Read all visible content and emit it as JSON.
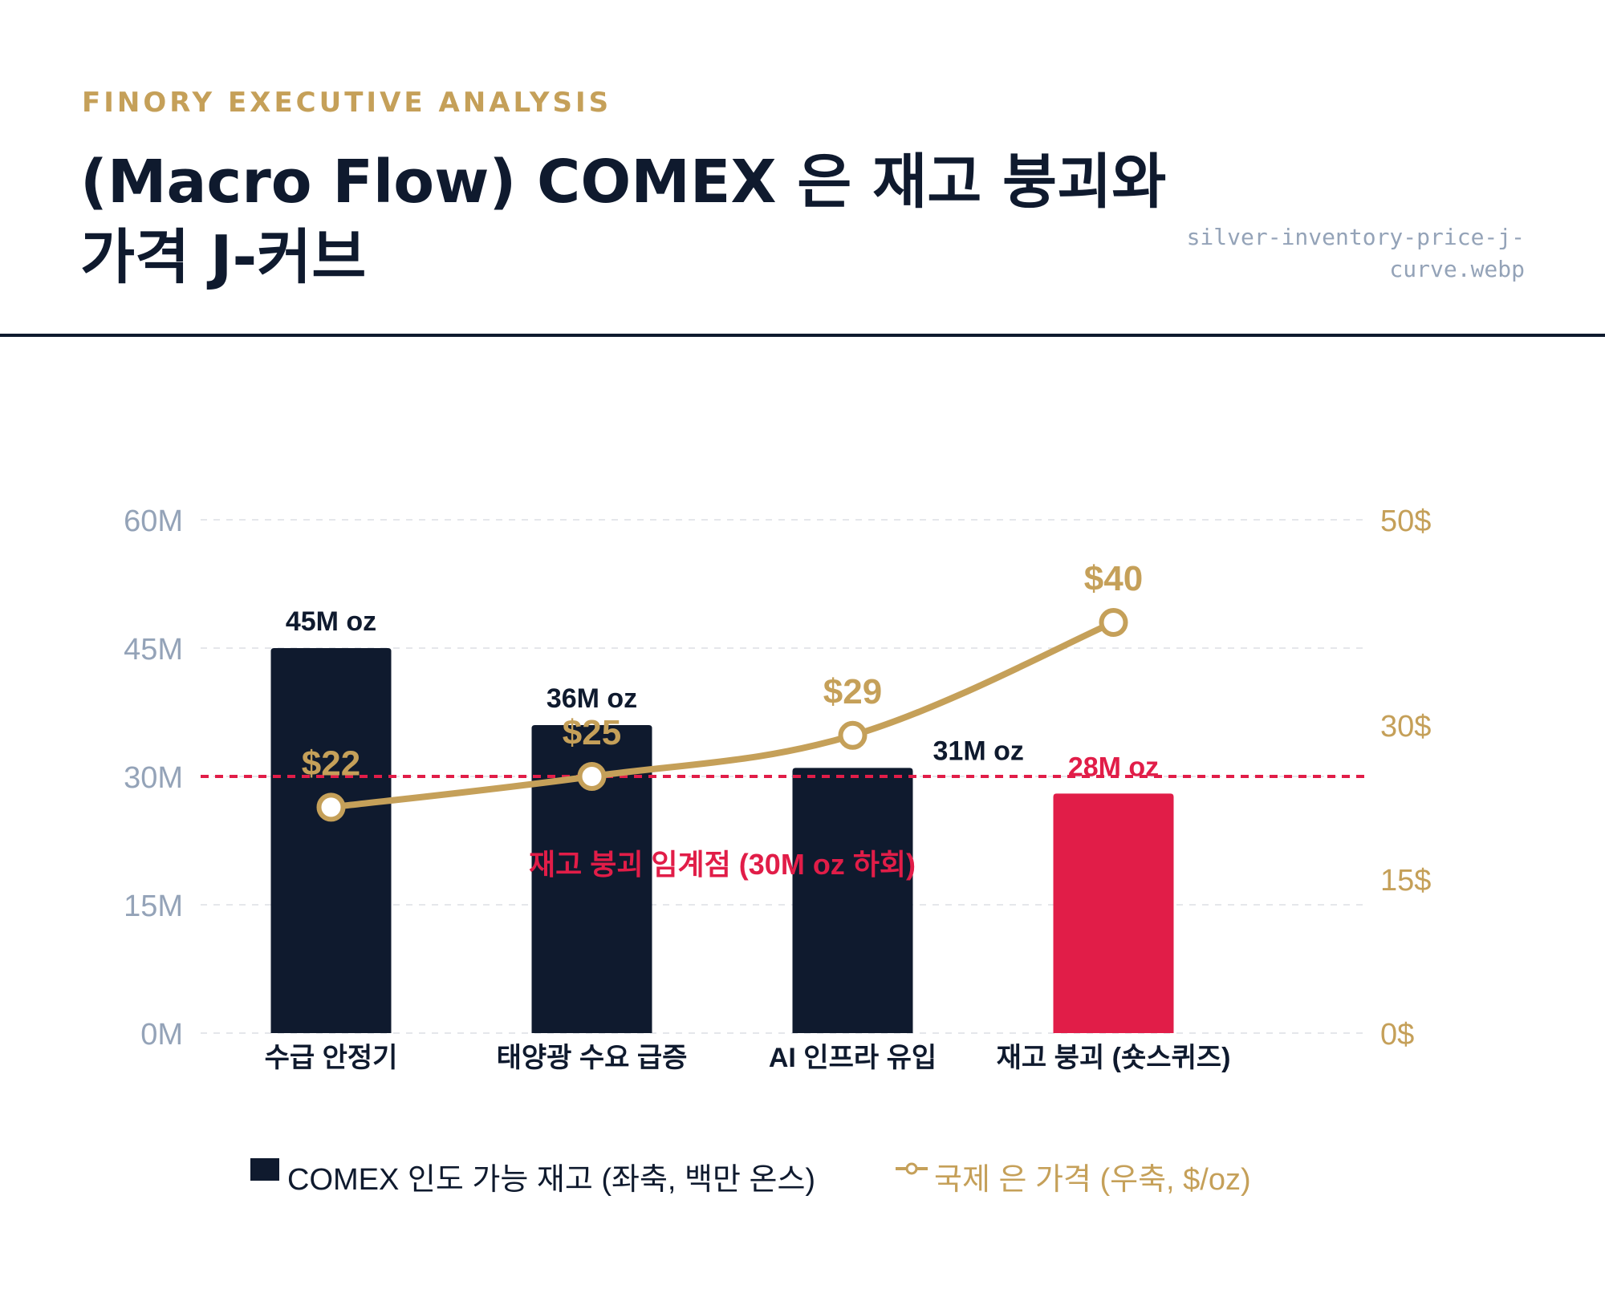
{
  "header": {
    "kicker": "FINORY EXECUTIVE ANALYSIS",
    "title_line1": "(Macro Flow) COMEX 은 재고 붕괴와",
    "title_line2": "가격 J-커브",
    "filename_line1": "silver-inventory-price-j-",
    "filename_line2": "curve.webp"
  },
  "colors": {
    "navy": "#0f1a2e",
    "gold": "#c5a059",
    "red": "#e11d48",
    "axis_gray": "#94a3b8",
    "grid": "#e5e7eb"
  },
  "chart_data": {
    "type": "bar",
    "categories": [
      "수급 안정기",
      "태양광 수요 급증",
      "AI 인프라 유입",
      "재고 붕괴 (숏스퀴즈)"
    ],
    "series": [
      {
        "name": "COMEX 인도 가능 재고 (좌축, 백만 온스)",
        "type": "bar",
        "axis": "left",
        "values": [
          45,
          36,
          31,
          28
        ],
        "labels": [
          "45M oz",
          "36M oz",
          "31M oz",
          "28M oz"
        ],
        "colors": [
          "#0f1a2e",
          "#0f1a2e",
          "#0f1a2e",
          "#e11d48"
        ]
      },
      {
        "name": "국제 은 가격 (우축, $/oz)",
        "type": "line",
        "axis": "right",
        "values": [
          22,
          25,
          29,
          40
        ],
        "labels": [
          "$22",
          "$25",
          "$29",
          "$40"
        ],
        "color": "#c5a059"
      }
    ],
    "y_left": {
      "min": 0,
      "max": 60,
      "ticks": [
        0,
        15,
        30,
        45,
        60
      ],
      "tick_labels": [
        "0M",
        "15M",
        "30M",
        "45M",
        "60M"
      ]
    },
    "y_right": {
      "min": 0,
      "max": 50,
      "ticks": [
        0,
        15,
        30,
        50
      ],
      "tick_labels": [
        "0$",
        "15$",
        "30$",
        "50$"
      ]
    },
    "threshold": {
      "value": 30,
      "axis": "left",
      "label": "재고 붕괴 임계점 (30M oz 하회)",
      "color": "#e11d48"
    },
    "grid": true,
    "legend_position": "bottom"
  }
}
